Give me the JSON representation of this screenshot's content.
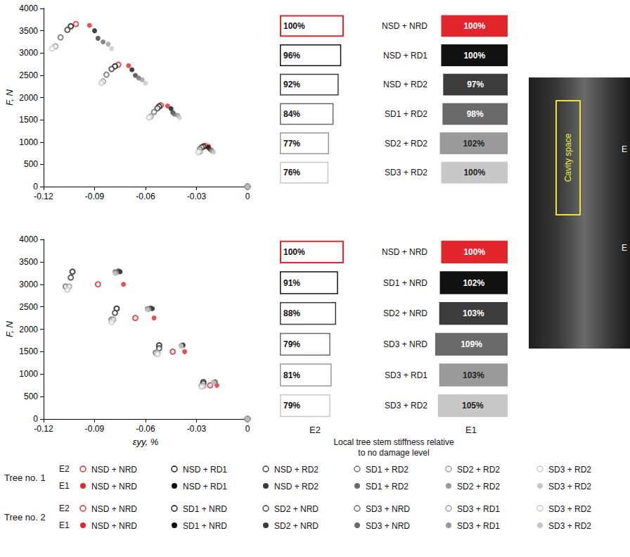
{
  "chart_data": [
    {
      "type": "scatter",
      "group_label": "Tree no. 1",
      "ylabel": "F, N",
      "xlim": [
        -0.12,
        0
      ],
      "xticks": [
        -0.12,
        -0.09,
        -0.06,
        -0.03,
        0
      ],
      "ylim": [
        0,
        4000
      ],
      "yticks": [
        0,
        500,
        1000,
        1500,
        2000,
        2500,
        3000,
        3500,
        4000
      ],
      "grid": false,
      "series": [
        {
          "name": "NSD + NRD",
          "sensor": "E2",
          "color": "#e3262b",
          "marker": "open",
          "values": [
            [
              0,
              0
            ],
            [
              -0.025,
              913
            ],
            [
              -0.051,
              1825
            ],
            [
              -0.076,
              2738
            ],
            [
              -0.101,
              3650
            ]
          ]
        },
        {
          "name": "NSD + RD1",
          "sensor": "E2",
          "color": "#111111",
          "marker": "open",
          "values": [
            [
              0,
              0
            ],
            [
              -0.026,
              900
            ],
            [
              -0.052,
              1800
            ],
            [
              -0.078,
              2700
            ],
            [
              -0.104,
              3600
            ]
          ]
        },
        {
          "name": "NSD + RD2",
          "sensor": "E2",
          "color": "#3c3c3c",
          "marker": "open",
          "values": [
            [
              0,
              0
            ],
            [
              -0.027,
              880
            ],
            [
              -0.053,
              1760
            ],
            [
              -0.08,
              2640
            ],
            [
              -0.106,
              3520
            ]
          ]
        },
        {
          "name": "SD1 + RD2",
          "sensor": "E2",
          "color": "#6a6a6a",
          "marker": "open",
          "values": [
            [
              0,
              0
            ],
            [
              -0.028,
              838
            ],
            [
              -0.055,
              1675
            ],
            [
              -0.083,
              2513
            ],
            [
              -0.11,
              3350
            ]
          ]
        },
        {
          "name": "SD2 + RD2",
          "sensor": "E2",
          "color": "#9a9a9a",
          "marker": "open",
          "values": [
            [
              0,
              0
            ],
            [
              -0.028,
              788
            ],
            [
              -0.057,
              1575
            ],
            [
              -0.085,
              2363
            ],
            [
              -0.113,
              3150
            ]
          ]
        },
        {
          "name": "SD3 + RD2",
          "sensor": "E2",
          "color": "#c8c8c8",
          "marker": "open",
          "values": [
            [
              0,
              0
            ],
            [
              -0.029,
              775
            ],
            [
              -0.058,
              1550
            ],
            [
              -0.086,
              2325
            ],
            [
              -0.115,
              3100
            ]
          ]
        },
        {
          "name": "NSD + NRD",
          "sensor": "E1",
          "color": "#e3262b",
          "marker": "filled",
          "values": [
            [
              0,
              0
            ],
            [
              -0.023,
              905
            ],
            [
              -0.047,
              1810
            ],
            [
              -0.07,
              2715
            ],
            [
              -0.093,
              3620
            ]
          ]
        },
        {
          "name": "NSD + RD1",
          "sensor": "E1",
          "color": "#111111",
          "marker": "filled",
          "values": [
            [
              0,
              0
            ],
            [
              -0.023,
              875
            ],
            [
              -0.045,
              1750
            ],
            [
              -0.068,
              2625
            ],
            [
              -0.09,
              3500
            ]
          ]
        },
        {
          "name": "NSD + RD2",
          "sensor": "E1",
          "color": "#3c3c3c",
          "marker": "filled",
          "values": [
            [
              0,
              0
            ],
            [
              -0.022,
              833
            ],
            [
              -0.044,
              1665
            ],
            [
              -0.066,
              2498
            ],
            [
              -0.088,
              3330
            ]
          ]
        },
        {
          "name": "SD1 + RD2",
          "sensor": "E1",
          "color": "#6a6a6a",
          "marker": "filled",
          "values": [
            [
              0,
              0
            ],
            [
              -0.021,
              813
            ],
            [
              -0.043,
              1625
            ],
            [
              -0.064,
              2438
            ],
            [
              -0.085,
              3250
            ]
          ]
        },
        {
          "name": "SD2 + RD2",
          "sensor": "E1",
          "color": "#9a9a9a",
          "marker": "filled",
          "values": [
            [
              0,
              0
            ],
            [
              -0.021,
              800
            ],
            [
              -0.041,
              1600
            ],
            [
              -0.062,
              2400
            ],
            [
              -0.082,
              3200
            ]
          ]
        },
        {
          "name": "SD3 + RD2",
          "sensor": "E1",
          "color": "#c8c8c8",
          "marker": "filled",
          "values": [
            [
              0,
              0
            ],
            [
              -0.02,
              775
            ],
            [
              -0.04,
              1550
            ],
            [
              -0.06,
              2325
            ],
            [
              -0.08,
              3100
            ]
          ]
        }
      ]
    },
    {
      "type": "scatter",
      "group_label": "Tree no. 2",
      "ylabel": "F, N",
      "xlabel": "εyy, %",
      "xlim": [
        -0.12,
        0
      ],
      "xticks": [
        -0.12,
        -0.09,
        -0.06,
        -0.03,
        0
      ],
      "ylim": [
        0,
        4000
      ],
      "yticks": [
        0,
        500,
        1000,
        1500,
        2000,
        2500,
        3000,
        3500,
        4000
      ],
      "grid": false,
      "series": [
        {
          "name": "NSD + NRD",
          "sensor": "E2",
          "color": "#e3262b",
          "marker": "open",
          "values": [
            [
              0,
              0
            ],
            [
              -0.022,
              750
            ],
            [
              -0.044,
              1500
            ],
            [
              -0.066,
              2250
            ],
            [
              -0.088,
              3000
            ]
          ]
        },
        {
          "name": "SD1 + NRD",
          "sensor": "E2",
          "color": "#111111",
          "marker": "open",
          "values": [
            [
              0,
              0
            ],
            [
              -0.026,
              820
            ],
            [
              -0.052,
              1640
            ],
            [
              -0.077,
              2460
            ],
            [
              -0.103,
              3280
            ]
          ]
        },
        {
          "name": "SD2 + NRD",
          "sensor": "E2",
          "color": "#3c3c3c",
          "marker": "open",
          "values": [
            [
              0,
              0
            ],
            [
              -0.026,
              788
            ],
            [
              -0.052,
              1575
            ],
            [
              -0.078,
              2363
            ],
            [
              -0.104,
              3150
            ]
          ]
        },
        {
          "name": "SD3 + NRD",
          "sensor": "E2",
          "color": "#6a6a6a",
          "marker": "open",
          "values": [
            [
              0,
              0
            ],
            [
              -0.027,
              738
            ],
            [
              -0.054,
              1475
            ],
            [
              -0.08,
              2213
            ],
            [
              -0.107,
              2950
            ]
          ]
        },
        {
          "name": "SD3 + RD1",
          "sensor": "E2",
          "color": "#9a9a9a",
          "marker": "open",
          "values": [
            [
              0,
              0
            ],
            [
              -0.026,
              738
            ],
            [
              -0.053,
              1475
            ],
            [
              -0.079,
              2213
            ],
            [
              -0.105,
              2950
            ]
          ]
        },
        {
          "name": "SD3 + RD2",
          "sensor": "E2",
          "color": "#c8c8c8",
          "marker": "open",
          "values": [
            [
              0,
              0
            ],
            [
              -0.027,
              720
            ],
            [
              -0.053,
              1440
            ],
            [
              -0.08,
              2160
            ],
            [
              -0.106,
              2880
            ]
          ]
        },
        {
          "name": "NSD + NRD",
          "sensor": "E1",
          "color": "#e3262b",
          "marker": "filled",
          "values": [
            [
              0,
              0
            ],
            [
              -0.018,
              750
            ],
            [
              -0.037,
              1500
            ],
            [
              -0.055,
              2250
            ],
            [
              -0.073,
              3000
            ]
          ]
        },
        {
          "name": "SD1 + NRD",
          "sensor": "E1",
          "color": "#111111",
          "marker": "filled",
          "values": [
            [
              0,
              0
            ],
            [
              -0.019,
              820
            ],
            [
              -0.038,
              1640
            ],
            [
              -0.056,
              2460
            ],
            [
              -0.075,
              3280
            ]
          ]
        },
        {
          "name": "SD2 + NRD",
          "sensor": "E1",
          "color": "#3c3c3c",
          "marker": "filled",
          "values": [
            [
              0,
              0
            ],
            [
              -0.019,
              825
            ],
            [
              -0.038,
              1650
            ],
            [
              -0.057,
              2475
            ],
            [
              -0.076,
              3300
            ]
          ]
        },
        {
          "name": "SD3 + NRD",
          "sensor": "E1",
          "color": "#6a6a6a",
          "marker": "filled",
          "values": [
            [
              0,
              0
            ],
            [
              -0.02,
              820
            ],
            [
              -0.039,
              1640
            ],
            [
              -0.059,
              2460
            ],
            [
              -0.078,
              3280
            ]
          ]
        },
        {
          "name": "SD3 + RD1",
          "sensor": "E1",
          "color": "#9a9a9a",
          "marker": "filled",
          "values": [
            [
              0,
              0
            ],
            [
              -0.019,
              813
            ],
            [
              -0.039,
              1625
            ],
            [
              -0.058,
              2438
            ],
            [
              -0.077,
              3250
            ]
          ]
        },
        {
          "name": "SD3 + RD2",
          "sensor": "E1",
          "color": "#c8c8c8",
          "marker": "filled",
          "values": [
            [
              0,
              0
            ],
            [
              -0.02,
              810
            ],
            [
              -0.039,
              1620
            ],
            [
              -0.059,
              2430
            ],
            [
              -0.078,
              3240
            ]
          ]
        }
      ]
    },
    {
      "type": "bar",
      "orientation": "horizontal",
      "data_labels": true,
      "tick_labels": false,
      "xlabel": "Local tree stem stiffness relative to no damage level",
      "xlim": [
        0,
        110
      ],
      "series_names": [
        "E2",
        "E1"
      ],
      "panels": [
        {
          "categories": [
            "NSD + NRD",
            "NSD + RD1",
            "NSD + RD2",
            "SD1 + RD2",
            "SD2 + RD2",
            "SD3 + RD2"
          ],
          "series": [
            {
              "values": [
                100,
                96,
                92,
                84,
                77,
                76
              ],
              "value_labels": [
                "100%",
                "96%",
                "92%",
                "84%",
                "77%",
                "76%"
              ],
              "colors": [
                "#e3262b",
                "#111111",
                "#3c3c3c",
                "#6a6a6a",
                "#9a9a9a",
                "#c8c8c8"
              ]
            },
            {
              "values": [
                100,
                100,
                97,
                98,
                102,
                100
              ],
              "value_labels": [
                "100%",
                "100%",
                "97%",
                "98%",
                "102%",
                "100%"
              ],
              "colors": [
                "#e3262b",
                "#111111",
                "#3c3c3c",
                "#6a6a6a",
                "#9a9a9a",
                "#c8c8c8"
              ]
            }
          ]
        },
        {
          "categories": [
            "NSD + NRD",
            "SD1 + NRD",
            "SD2 + NRD",
            "SD3 + NRD",
            "SD3 + RD1",
            "SD3 + RD2"
          ],
          "series": [
            {
              "values": [
                100,
                91,
                88,
                79,
                81,
                79
              ],
              "value_labels": [
                "100%",
                "91%",
                "88%",
                "79%",
                "81%",
                "79%"
              ],
              "colors": [
                "#e3262b",
                "#111111",
                "#3c3c3c",
                "#6a6a6a",
                "#9a9a9a",
                "#c8c8c8"
              ]
            },
            {
              "values": [
                100,
                102,
                103,
                109,
                103,
                105
              ],
              "value_labels": [
                "100%",
                "102%",
                "103%",
                "109%",
                "103%",
                "105%"
              ],
              "colors": [
                "#e3262b",
                "#111111",
                "#3c3c3c",
                "#6a6a6a",
                "#9a9a9a",
                "#c8c8c8"
              ]
            }
          ]
        }
      ]
    }
  ],
  "photo": {
    "region_label": "Cavity space",
    "markers": [
      "E",
      "E"
    ]
  }
}
